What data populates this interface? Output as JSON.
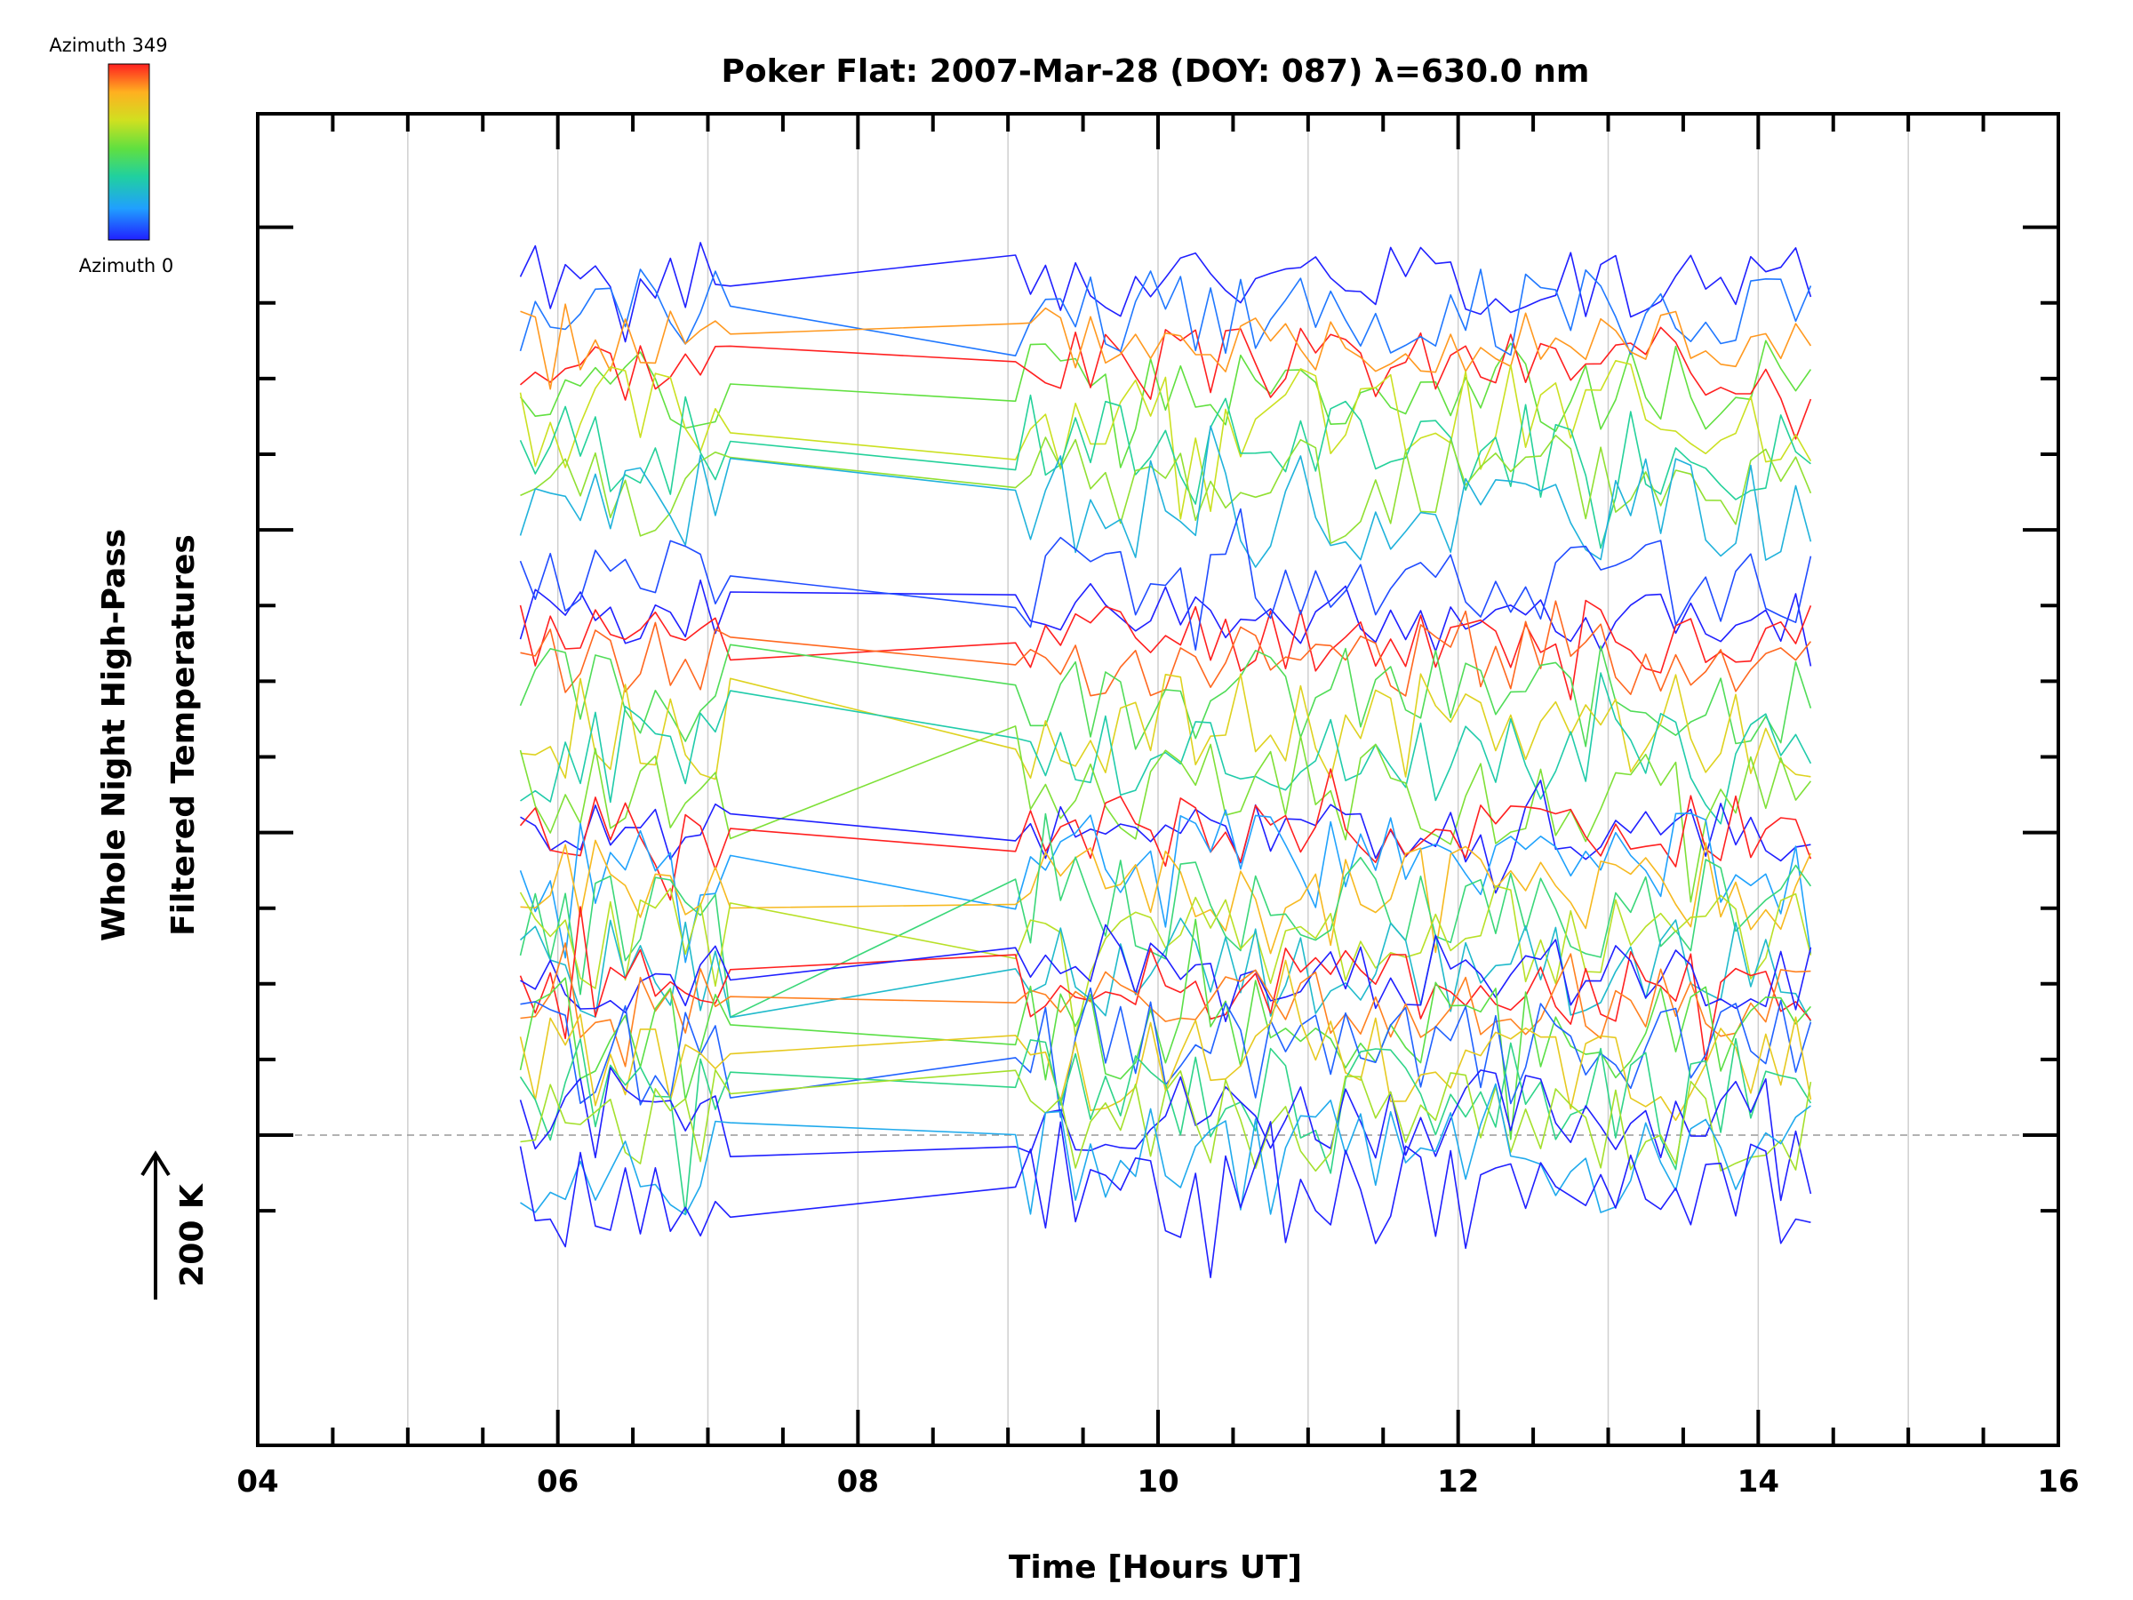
{
  "chart_data": {
    "type": "line",
    "title": "Poker Flat: 2007-Mar-28 (DOY: 087) λ=630.0 nm",
    "xlabel": "Time [Hours UT]",
    "ylabel": [
      "Whole Night High-Pass",
      "Filtered Temperatures"
    ],
    "scale_label": "200 K",
    "colorbar": {
      "top_label": "Azimuth 349",
      "bottom_label": "Azimuth 0",
      "min": 0,
      "max": 349,
      "colors": [
        "#2020ff",
        "#20a0ff",
        "#20d0a0",
        "#60e040",
        "#d0e020",
        "#ffb020",
        "#ff2020"
      ]
    },
    "xlim": [
      4,
      16
    ],
    "ylim": [
      -4.1,
      13.5
    ],
    "x_ticks": [
      4,
      6,
      8,
      10,
      12,
      14,
      16
    ],
    "x_tick_labels": [
      "04",
      "06",
      "08",
      "10",
      "12",
      "14",
      "16"
    ],
    "y_major_ticks": [
      0,
      4,
      8,
      12
    ],
    "y_minor_ticks": [
      -1,
      1,
      2,
      3,
      5,
      6,
      7,
      9,
      10,
      11
    ],
    "vertical_gridlines": [
      5,
      6,
      7,
      8,
      9,
      10,
      11,
      12,
      13,
      14,
      15
    ],
    "reference_line_y": 0,
    "grid": true,
    "legend": "colorbar top-left",
    "x_start": 5.75,
    "x_step": 0.1,
    "x_count": 87,
    "data_gap_hours": [
      7.15,
      9.0
    ],
    "series": [
      {
        "azimuth": 0,
        "offset": 11.3,
        "amp": 0.5,
        "seed": 1
      },
      {
        "azimuth": 175,
        "offset": 9.9,
        "amp": 0.6,
        "seed": 2
      },
      {
        "azimuth": 349,
        "offset": 10.2,
        "amp": 0.5,
        "seed": 3
      },
      {
        "azimuth": 40,
        "offset": 10.9,
        "amp": 0.6,
        "seed": 4
      },
      {
        "azimuth": 300,
        "offset": 10.5,
        "amp": 0.5,
        "seed": 5
      },
      {
        "azimuth": 230,
        "offset": 9.5,
        "amp": 0.7,
        "seed": 6
      },
      {
        "azimuth": 120,
        "offset": 9.1,
        "amp": 0.7,
        "seed": 7
      },
      {
        "azimuth": 200,
        "offset": 8.6,
        "amp": 0.7,
        "seed": 8
      },
      {
        "azimuth": 80,
        "offset": 8.3,
        "amp": 0.7,
        "seed": 9
      },
      {
        "azimuth": 0,
        "offset": 6.9,
        "amp": 0.4,
        "seed": 10
      },
      {
        "azimuth": 349,
        "offset": 6.6,
        "amp": 0.5,
        "seed": 11
      },
      {
        "azimuth": 20,
        "offset": 7.3,
        "amp": 0.6,
        "seed": 12
      },
      {
        "azimuth": 320,
        "offset": 6.3,
        "amp": 0.5,
        "seed": 13
      },
      {
        "azimuth": 160,
        "offset": 5.8,
        "amp": 0.7,
        "seed": 14
      },
      {
        "azimuth": 250,
        "offset": 5.4,
        "amp": 0.7,
        "seed": 15
      },
      {
        "azimuth": 110,
        "offset": 5.0,
        "amp": 0.7,
        "seed": 16
      },
      {
        "azimuth": 190,
        "offset": 4.5,
        "amp": 0.7,
        "seed": 17
      },
      {
        "azimuth": 0,
        "offset": 4.0,
        "amp": 0.4,
        "seed": 18
      },
      {
        "azimuth": 349,
        "offset": 4.0,
        "amp": 0.5,
        "seed": 19
      },
      {
        "azimuth": 60,
        "offset": 3.6,
        "amp": 0.7,
        "seed": 20
      },
      {
        "azimuth": 280,
        "offset": 3.3,
        "amp": 0.6,
        "seed": 21
      },
      {
        "azimuth": 140,
        "offset": 3.0,
        "amp": 0.7,
        "seed": 22
      },
      {
        "azimuth": 220,
        "offset": 2.6,
        "amp": 0.7,
        "seed": 23
      },
      {
        "azimuth": 90,
        "offset": 2.2,
        "amp": 0.7,
        "seed": 24
      },
      {
        "azimuth": 349,
        "offset": 2.0,
        "amp": 0.5,
        "seed": 25
      },
      {
        "azimuth": 0,
        "offset": 2.1,
        "amp": 0.5,
        "seed": 26
      },
      {
        "azimuth": 310,
        "offset": 1.7,
        "amp": 0.5,
        "seed": 27
      },
      {
        "azimuth": 170,
        "offset": 1.4,
        "amp": 0.7,
        "seed": 28
      },
      {
        "azimuth": 30,
        "offset": 1.1,
        "amp": 0.7,
        "seed": 29
      },
      {
        "azimuth": 260,
        "offset": 0.9,
        "amp": 0.7,
        "seed": 30
      },
      {
        "azimuth": 130,
        "offset": 0.6,
        "amp": 0.7,
        "seed": 31
      },
      {
        "azimuth": 0,
        "offset": 0.3,
        "amp": 0.6,
        "seed": 32
      },
      {
        "azimuth": 210,
        "offset": 0.2,
        "amp": 0.7,
        "seed": 33
      },
      {
        "azimuth": 70,
        "offset": -0.3,
        "amp": 0.8,
        "seed": 34
      },
      {
        "azimuth": 0,
        "offset": -0.8,
        "amp": 0.7,
        "seed": 35
      }
    ]
  }
}
